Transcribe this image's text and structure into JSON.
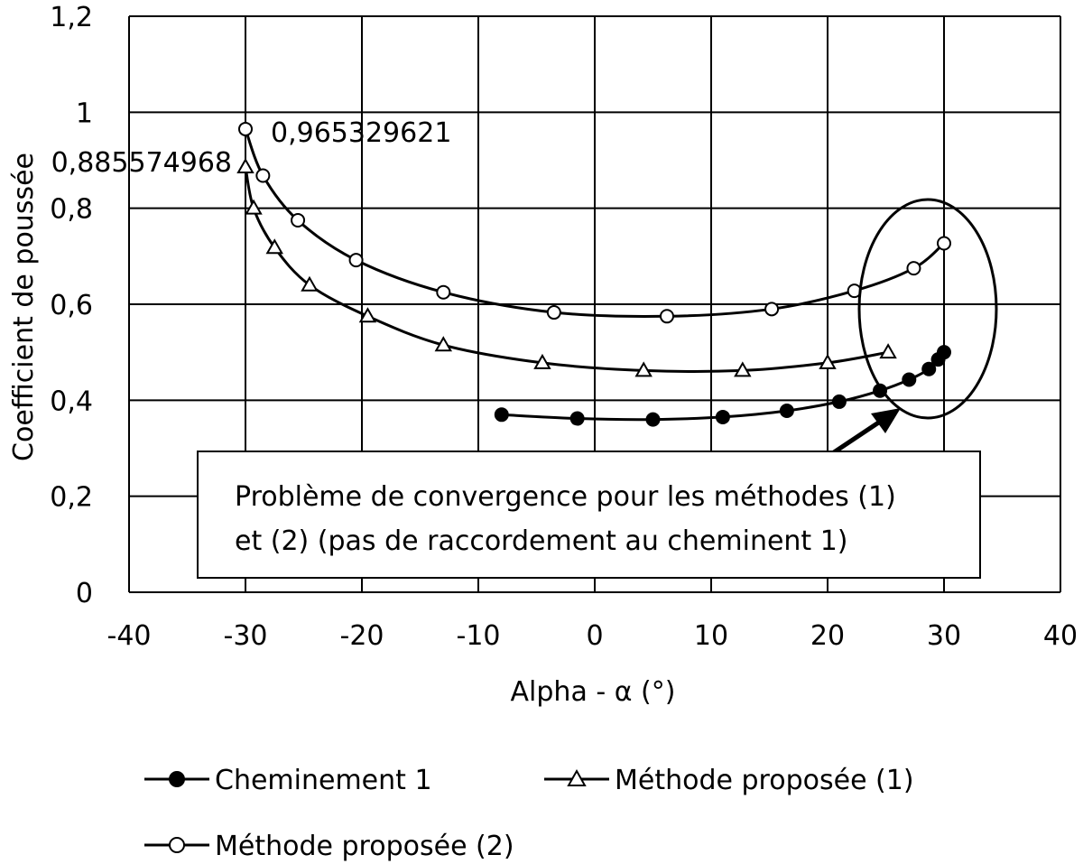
{
  "chart_data": {
    "type": "scatter",
    "xlabel": "Alpha - α (°)",
    "ylabel": "Coefficient de poussée",
    "xlim": [
      -40,
      40
    ],
    "ylim": [
      0,
      1.2
    ],
    "xticks": [
      -40,
      -30,
      -20,
      -10,
      0,
      10,
      20,
      30,
      40
    ],
    "xtick_labels": [
      "-40",
      "-30",
      "-20",
      "-10",
      "0",
      "10",
      "20",
      "30",
      "40"
    ],
    "yticks": [
      0,
      0.2,
      0.4,
      0.6,
      0.8,
      1.0,
      1.2
    ],
    "ytick_labels": [
      "0",
      "0,2",
      "0,4",
      "0,6",
      "0,8",
      "1",
      "1,2"
    ],
    "grid": true,
    "legend_position": "bottom",
    "series": [
      {
        "name": "Cheminement 1",
        "marker": "filled-circle",
        "x": [
          -8,
          -1.5,
          5,
          11,
          16.5,
          21,
          24.5,
          27,
          28.7,
          29.5,
          30
        ],
        "y": [
          0.37,
          0.362,
          0.36,
          0.365,
          0.378,
          0.397,
          0.42,
          0.443,
          0.465,
          0.485,
          0.5
        ]
      },
      {
        "name": "Méthode proposée (1)",
        "marker": "open-triangle",
        "x": [
          -30,
          -29.3,
          -27.5,
          -24.5,
          -19.5,
          -13,
          -4.5,
          4.2,
          12.7,
          20,
          25.2
        ],
        "y": [
          0.886,
          0.8,
          0.718,
          0.64,
          0.575,
          0.515,
          0.478,
          0.462,
          0.462,
          0.478,
          0.5
        ]
      },
      {
        "name": "Méthode proposée (2)",
        "marker": "open-circle",
        "x": [
          -30,
          -28.5,
          -25.5,
          -20.5,
          -13,
          -3.5,
          6.2,
          15.2,
          22.3,
          27.4,
          30
        ],
        "y": [
          0.965,
          0.868,
          0.775,
          0.692,
          0.625,
          0.583,
          0.575,
          0.59,
          0.628,
          0.675,
          0.727
        ]
      }
    ],
    "annotations": {
      "label_m1": "0,885574968",
      "label_m2": "0,965329621",
      "note_line1": "Problème de convergence pour les méthodes (1)",
      "note_line2": "et (2) (pas de raccordement au cheminent 1)"
    }
  }
}
